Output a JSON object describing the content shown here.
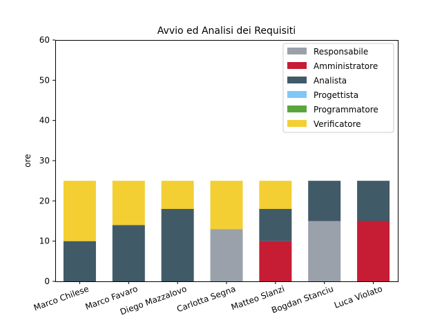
{
  "chart_data": {
    "type": "bar",
    "stacked": true,
    "title": "Avvio ed Analisi dei Requisiti",
    "xlabel": "",
    "ylabel": "ore",
    "ylim": [
      0,
      60
    ],
    "yticks": [
      0,
      10,
      20,
      30,
      40,
      50,
      60
    ],
    "grid": false,
    "legend_position": "top-right",
    "categories": [
      "Marco Chilese",
      "Marco Favaro",
      "Diego Mazzalovo",
      "Carlotta Segna",
      "Matteo Slanzi",
      "Bogdan Stanciu",
      "Luca Violato"
    ],
    "series": [
      {
        "name": "Responsabile",
        "color": "#9aa1ab",
        "values": [
          0,
          0,
          0,
          13,
          0,
          15,
          0
        ]
      },
      {
        "name": "Amministratore",
        "color": "#c61c34",
        "values": [
          0,
          0,
          0,
          0,
          10,
          0,
          15
        ]
      },
      {
        "name": "Analista",
        "color": "#415a68",
        "values": [
          10,
          14,
          18,
          0,
          8,
          10,
          10
        ]
      },
      {
        "name": "Progettista",
        "color": "#7fc8f6",
        "values": [
          0,
          0,
          0,
          0,
          0,
          0,
          0
        ]
      },
      {
        "name": "Programmatore",
        "color": "#5aa63c",
        "values": [
          0,
          0,
          0,
          0,
          0,
          0,
          0
        ]
      },
      {
        "name": "Verificatore",
        "color": "#f3cf34",
        "values": [
          15,
          11,
          7,
          12,
          7,
          0,
          0
        ]
      }
    ]
  }
}
